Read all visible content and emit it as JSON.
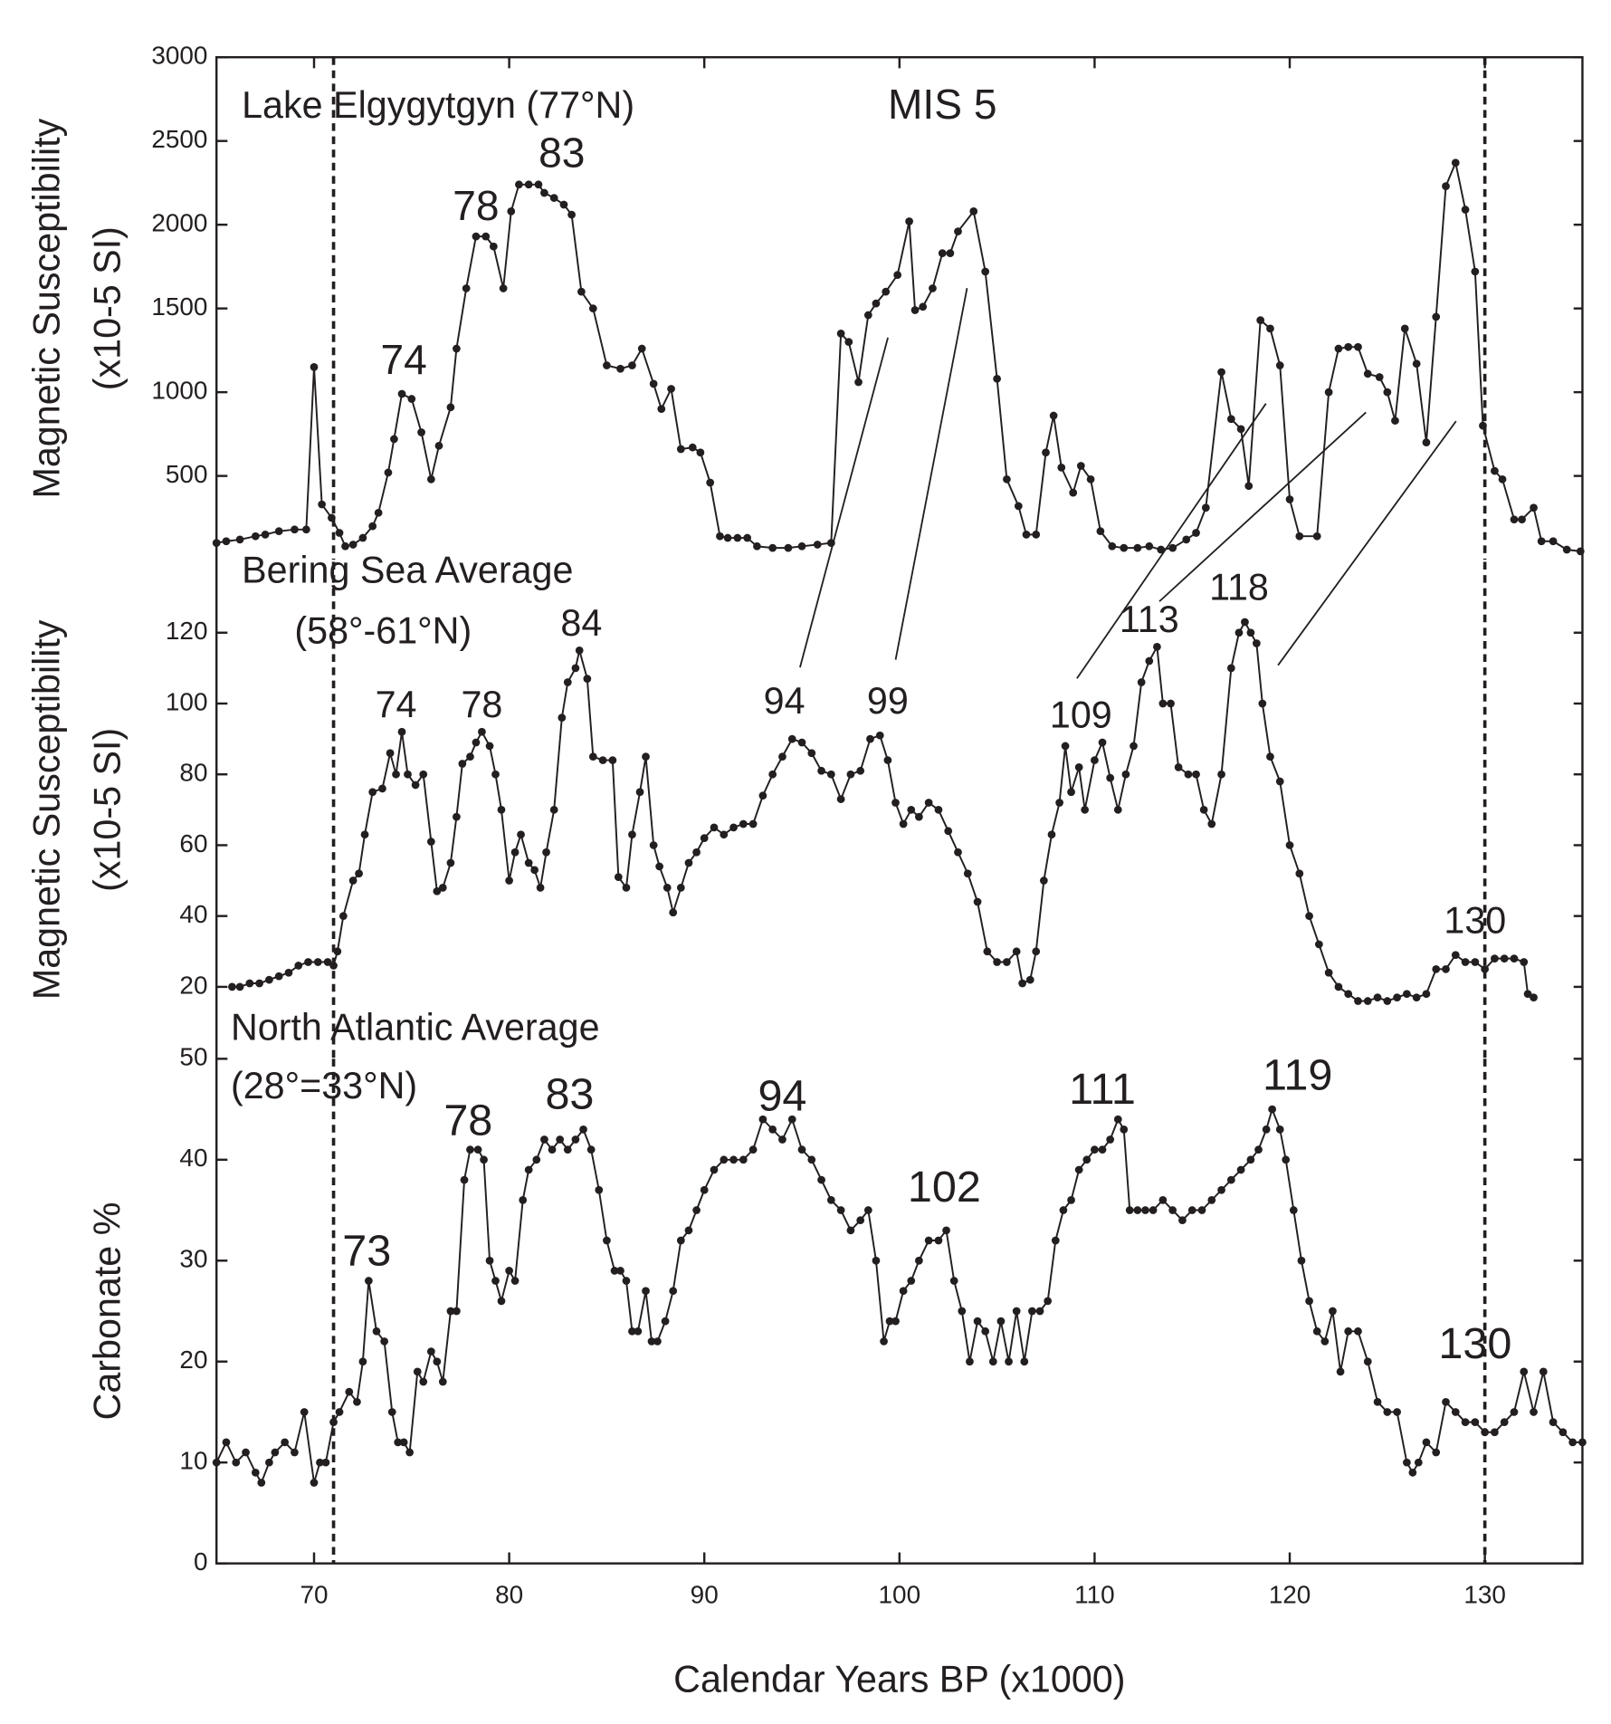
{
  "chart_data": [
    {
      "type": "line",
      "title": "Lake Elgygytgyn (77°N)",
      "ylabel": [
        "Magnetic Susceptibility",
        "(x10-5 SI)"
      ],
      "xlim": [
        65,
        135
      ],
      "ylim": [
        0,
        3000
      ],
      "yticks": [
        500,
        1000,
        1500,
        2000,
        2500,
        3000
      ],
      "color": "#231f20",
      "markers": true,
      "xlines": [
        71,
        130
      ],
      "annotations": [
        {
          "text": "MIS 5",
          "x": 102.2,
          "y": 2699
        },
        {
          "text": "74",
          "x": 74.6,
          "y": 1175
        },
        {
          "text": "78",
          "x": 78.3,
          "y": 2095
        },
        {
          "text": "83",
          "x": 82.7,
          "y": 2410
        }
      ],
      "x": [
        65.0,
        65.5,
        66.2,
        67.0,
        67.5,
        68.2,
        69.0,
        69.6,
        70.0,
        70.4,
        70.9,
        71.3,
        71.6,
        72.0,
        72.5,
        73.0,
        73.3,
        73.8,
        74.1,
        74.5,
        75.0,
        75.5,
        76.0,
        76.4,
        77.0,
        77.3,
        77.8,
        78.3,
        78.8,
        79.2,
        79.7,
        80.1,
        80.5,
        81.0,
        81.5,
        81.8,
        82.3,
        82.8,
        83.2,
        83.7,
        84.3,
        85.0,
        85.7,
        86.3,
        86.8,
        87.4,
        87.8,
        88.3,
        88.8,
        89.4,
        89.8,
        90.3,
        90.8,
        91.2,
        91.7,
        92.2,
        92.7,
        93.5,
        94.3,
        95.0,
        95.8,
        96.5,
        97.0,
        97.4,
        97.9,
        98.4,
        98.8,
        99.3,
        99.9,
        100.5,
        100.8,
        101.2,
        101.7,
        102.2,
        102.6,
        103.0,
        103.8,
        104.4,
        105.0,
        105.5,
        106.1,
        106.5,
        107.0,
        107.5,
        107.9,
        108.3,
        108.9,
        109.3,
        109.8,
        110.3,
        110.9,
        111.5,
        112.2,
        112.8,
        113.4,
        114.0,
        114.7,
        115.2,
        115.7,
        116.5,
        117.0,
        117.5,
        117.9,
        118.5,
        119.0,
        119.5,
        120.0,
        120.5,
        121.4,
        122.0,
        122.5,
        123.0,
        123.5,
        124.0,
        124.6,
        125.0,
        125.4,
        125.9,
        126.5,
        127.0,
        127.5,
        128.0,
        128.5,
        129.0,
        129.5,
        129.9,
        130.5,
        130.9,
        131.5,
        131.9,
        132.5,
        132.9,
        133.5,
        134.2,
        134.9
      ],
      "values": [
        100,
        110,
        120,
        140,
        150,
        170,
        180,
        180,
        1150,
        330,
        250,
        160,
        80,
        90,
        130,
        200,
        280,
        520,
        720,
        990,
        960,
        760,
        480,
        680,
        910,
        1260,
        1620,
        1930,
        1930,
        1870,
        1620,
        2080,
        2240,
        2240,
        2240,
        2190,
        2160,
        2120,
        2060,
        1600,
        1500,
        1160,
        1140,
        1160,
        1260,
        1050,
        900,
        1020,
        660,
        670,
        640,
        460,
        140,
        130,
        130,
        130,
        80,
        70,
        70,
        80,
        90,
        100,
        1350,
        1300,
        1060,
        1460,
        1530,
        1600,
        1700,
        2020,
        1490,
        1510,
        1620,
        1830,
        1830,
        1960,
        2080,
        1720,
        1080,
        480,
        320,
        150,
        150,
        640,
        860,
        550,
        400,
        560,
        480,
        170,
        80,
        70,
        70,
        80,
        60,
        70,
        120,
        160,
        310,
        1120,
        840,
        780,
        440,
        1430,
        1380,
        1160,
        360,
        140,
        140,
        1000,
        1260,
        1270,
        1270,
        1110,
        1090,
        1000,
        830,
        1380,
        1170,
        700,
        1450,
        2230,
        2370,
        2090,
        1720,
        800,
        530,
        480,
        240,
        240,
        310,
        110,
        110,
        60,
        50
      ]
    },
    {
      "type": "line",
      "title": [
        "Bering Sea Average",
        "(58°-61°N)"
      ],
      "ylabel": [
        "Magnetic Susceptibility",
        "(x10-5 SI)"
      ],
      "xlim": [
        65,
        135
      ],
      "ylim": [
        0,
        140
      ],
      "yticks": [
        20,
        40,
        60,
        80,
        100,
        120
      ],
      "color": "#231f20",
      "markers": true,
      "xlines": [
        71,
        130
      ],
      "annotations": [
        {
          "text": "74",
          "x": 74.2,
          "y": 99
        },
        {
          "text": "78",
          "x": 78.6,
          "y": 99
        },
        {
          "text": "84",
          "x": 83.7,
          "y": 122
        },
        {
          "text": "94",
          "x": 94.1,
          "y": 100
        },
        {
          "text": "99",
          "x": 99.4,
          "y": 100
        },
        {
          "text": "109",
          "x": 109.3,
          "y": 96
        },
        {
          "text": "113",
          "x": 112.8,
          "y": 123
        },
        {
          "text": "118",
          "x": 117.4,
          "y": 132
        },
        {
          "text": "130",
          "x": 129.5,
          "y": 38
        }
      ],
      "x": [
        65.8,
        66.2,
        66.7,
        67.2,
        67.7,
        68.2,
        68.7,
        69.2,
        69.7,
        70.2,
        70.7,
        71.0,
        71.2,
        71.5,
        72.0,
        72.3,
        72.6,
        73.0,
        73.5,
        73.9,
        74.2,
        74.5,
        74.8,
        75.2,
        75.6,
        76.0,
        76.3,
        76.6,
        77.0,
        77.3,
        77.6,
        78.0,
        78.3,
        78.6,
        79.0,
        79.3,
        79.6,
        80.0,
        80.3,
        80.6,
        81.0,
        81.3,
        81.6,
        81.9,
        82.3,
        82.7,
        83.0,
        83.4,
        83.6,
        84.0,
        84.3,
        84.8,
        85.3,
        85.6,
        86.0,
        86.3,
        86.7,
        87.0,
        87.4,
        87.7,
        88.1,
        88.4,
        88.8,
        89.2,
        89.6,
        90.0,
        90.5,
        91.0,
        91.5,
        92.0,
        92.5,
        93.0,
        93.5,
        94.0,
        94.5,
        95.0,
        95.5,
        96.0,
        96.5,
        97.0,
        97.5,
        98.0,
        98.5,
        99.0,
        99.4,
        99.8,
        100.2,
        100.6,
        101.0,
        101.5,
        102.0,
        102.5,
        103.0,
        103.5,
        104.0,
        104.5,
        105.0,
        105.5,
        106.0,
        106.3,
        106.7,
        107.0,
        107.4,
        107.8,
        108.2,
        108.5,
        108.8,
        109.2,
        109.5,
        110.0,
        110.4,
        110.8,
        111.2,
        111.6,
        112.0,
        112.4,
        112.8,
        113.2,
        113.5,
        113.9,
        114.3,
        114.8,
        115.2,
        115.6,
        116.0,
        116.5,
        117.0,
        117.4,
        117.7,
        118.0,
        118.3,
        118.6,
        119.0,
        119.5,
        120.0,
        120.5,
        121.0,
        121.5,
        122.0,
        122.5,
        123.0,
        123.5,
        124.0,
        124.5,
        125.0,
        125.5,
        126.0,
        126.5,
        127.0,
        127.5,
        128.0,
        128.5,
        129.0,
        129.5,
        130.0,
        130.5,
        131.0,
        131.5,
        132.0,
        132.2,
        132.5
      ],
      "values": [
        20,
        20,
        21,
        21,
        22,
        23,
        24,
        26,
        27,
        27,
        27,
        26,
        30,
        40,
        50,
        52,
        63,
        75,
        76,
        86,
        80,
        92,
        80,
        77,
        80,
        61,
        47,
        48,
        55,
        68,
        83,
        85,
        89,
        92,
        88,
        80,
        70,
        50,
        58,
        63,
        55,
        53,
        48,
        58,
        70,
        96,
        106,
        110,
        115,
        107,
        85,
        84,
        84,
        51,
        48,
        63,
        75,
        85,
        60,
        54,
        48,
        41,
        48,
        55,
        58,
        62,
        65,
        63,
        65,
        66,
        66,
        74,
        80,
        85,
        90,
        89,
        86,
        81,
        80,
        73,
        80,
        81,
        90,
        91,
        84,
        72,
        66,
        70,
        68,
        72,
        70,
        64,
        58,
        52,
        44,
        30,
        27,
        27,
        30,
        21,
        22,
        30,
        50,
        63,
        72,
        88,
        75,
        82,
        70,
        84,
        89,
        79,
        70,
        80,
        88,
        106,
        112,
        116,
        100,
        100,
        82,
        80,
        80,
        70,
        66,
        80,
        110,
        120,
        123,
        120,
        117,
        100,
        85,
        78,
        60,
        52,
        40,
        32,
        24,
        20,
        18,
        16,
        16,
        17,
        16,
        17,
        18,
        17,
        18,
        25,
        25,
        29,
        27,
        27,
        25,
        28,
        28,
        28,
        27,
        18,
        17
      ]
    },
    {
      "type": "line",
      "title": [
        "North Atlantic Average",
        "(28°=33°N)"
      ],
      "ylabel": [
        "Carbonate %"
      ],
      "xlabel": "Calendar Years BP (x1000)",
      "xlim": [
        65,
        135
      ],
      "xticks": [
        70,
        80,
        90,
        100,
        110,
        120,
        130
      ],
      "ylim": [
        0,
        50
      ],
      "yticks": [
        0,
        10,
        20,
        30,
        40,
        50
      ],
      "color": "#231f20",
      "markers": true,
      "xlines": [
        71,
        130
      ],
      "annotations": [
        {
          "text": "73",
          "x": 72.7,
          "y": 30.7
        },
        {
          "text": "78",
          "x": 77.9,
          "y": 43.6
        },
        {
          "text": "83",
          "x": 83.1,
          "y": 46.2
        },
        {
          "text": "94",
          "x": 94,
          "y": 46
        },
        {
          "text": "102",
          "x": 102.3,
          "y": 37
        },
        {
          "text": "111",
          "x": 110.4,
          "y": 46.7
        },
        {
          "text": "119",
          "x": 120.4,
          "y": 48.1
        },
        {
          "text": "130",
          "x": 129.5,
          "y": 21.5
        }
      ],
      "x": [
        65.0,
        65.5,
        66.0,
        66.5,
        67.0,
        67.3,
        67.7,
        68.0,
        68.5,
        69.0,
        69.5,
        70.0,
        70.3,
        70.6,
        71.0,
        71.3,
        71.8,
        72.2,
        72.5,
        72.8,
        73.2,
        73.6,
        74.0,
        74.3,
        74.6,
        74.9,
        75.3,
        75.6,
        76.0,
        76.3,
        76.6,
        77.0,
        77.3,
        77.7,
        78.0,
        78.4,
        78.7,
        79.0,
        79.3,
        79.6,
        80.0,
        80.3,
        80.7,
        81.0,
        81.4,
        81.8,
        82.2,
        82.6,
        83.0,
        83.4,
        83.8,
        84.2,
        84.6,
        85.0,
        85.4,
        85.7,
        86.0,
        86.3,
        86.6,
        87.0,
        87.3,
        87.6,
        88.0,
        88.4,
        88.8,
        89.2,
        89.6,
        90.0,
        90.5,
        91.0,
        91.5,
        92.0,
        92.5,
        93.0,
        93.5,
        94.0,
        94.5,
        95.0,
        95.5,
        96.0,
        96.5,
        97.0,
        97.5,
        98.0,
        98.4,
        98.8,
        99.2,
        99.5,
        99.8,
        100.2,
        100.6,
        101.0,
        101.5,
        102.0,
        102.4,
        102.8,
        103.2,
        103.6,
        104.0,
        104.4,
        104.8,
        105.2,
        105.6,
        106.0,
        106.4,
        106.8,
        107.2,
        107.6,
        108.0,
        108.4,
        108.8,
        109.2,
        109.6,
        110.0,
        110.4,
        110.8,
        111.2,
        111.5,
        111.8,
        112.2,
        112.6,
        113.0,
        113.5,
        114.0,
        114.5,
        115.0,
        115.5,
        116.0,
        116.5,
        117.0,
        117.5,
        118.0,
        118.4,
        118.8,
        119.1,
        119.5,
        119.8,
        120.2,
        120.6,
        121.0,
        121.4,
        121.8,
        122.2,
        122.6,
        123.0,
        123.5,
        124.0,
        124.5,
        125.0,
        125.5,
        126.0,
        126.3,
        126.6,
        127.0,
        127.5,
        128.0,
        128.5,
        129.0,
        129.5,
        130.0,
        130.5,
        131.0,
        131.5,
        132.0,
        132.5,
        133.0,
        133.5,
        134.0,
        134.5,
        135.0
      ],
      "values": [
        10,
        12,
        10,
        11,
        9,
        8,
        10,
        11,
        12,
        11,
        15,
        8,
        10,
        10,
        14,
        15,
        17,
        16,
        20,
        28,
        23,
        22,
        15,
        12,
        12,
        11,
        19,
        18,
        21,
        20,
        18,
        25,
        25,
        38,
        41,
        41,
        40,
        30,
        28,
        26,
        29,
        28,
        36,
        39,
        40,
        42,
        41,
        42,
        41,
        42,
        43,
        41,
        37,
        32,
        29,
        29,
        28,
        23,
        23,
        27,
        22,
        22,
        24,
        27,
        32,
        33,
        35,
        37,
        39,
        40,
        40,
        40,
        41,
        44,
        43,
        42,
        44,
        41,
        40,
        38,
        36,
        35,
        33,
        34,
        35,
        30,
        22,
        24,
        24,
        27,
        28,
        30,
        32,
        32,
        33,
        28,
        25,
        20,
        24,
        23,
        20,
        24,
        20,
        25,
        20,
        25,
        25,
        26,
        32,
        35,
        36,
        39,
        40,
        41,
        41,
        42,
        44,
        43,
        35,
        35,
        35,
        35,
        36,
        35,
        34,
        35,
        35,
        36,
        37,
        38,
        39,
        40,
        41,
        43,
        45,
        43,
        40,
        35,
        30,
        26,
        23,
        22,
        25,
        19,
        23,
        23,
        20,
        16,
        15,
        15,
        10,
        9,
        10,
        12,
        11,
        16,
        15,
        14,
        14,
        13,
        13,
        14,
        15,
        19,
        15,
        19,
        14,
        13,
        12,
        12
      ]
    }
  ]
}
